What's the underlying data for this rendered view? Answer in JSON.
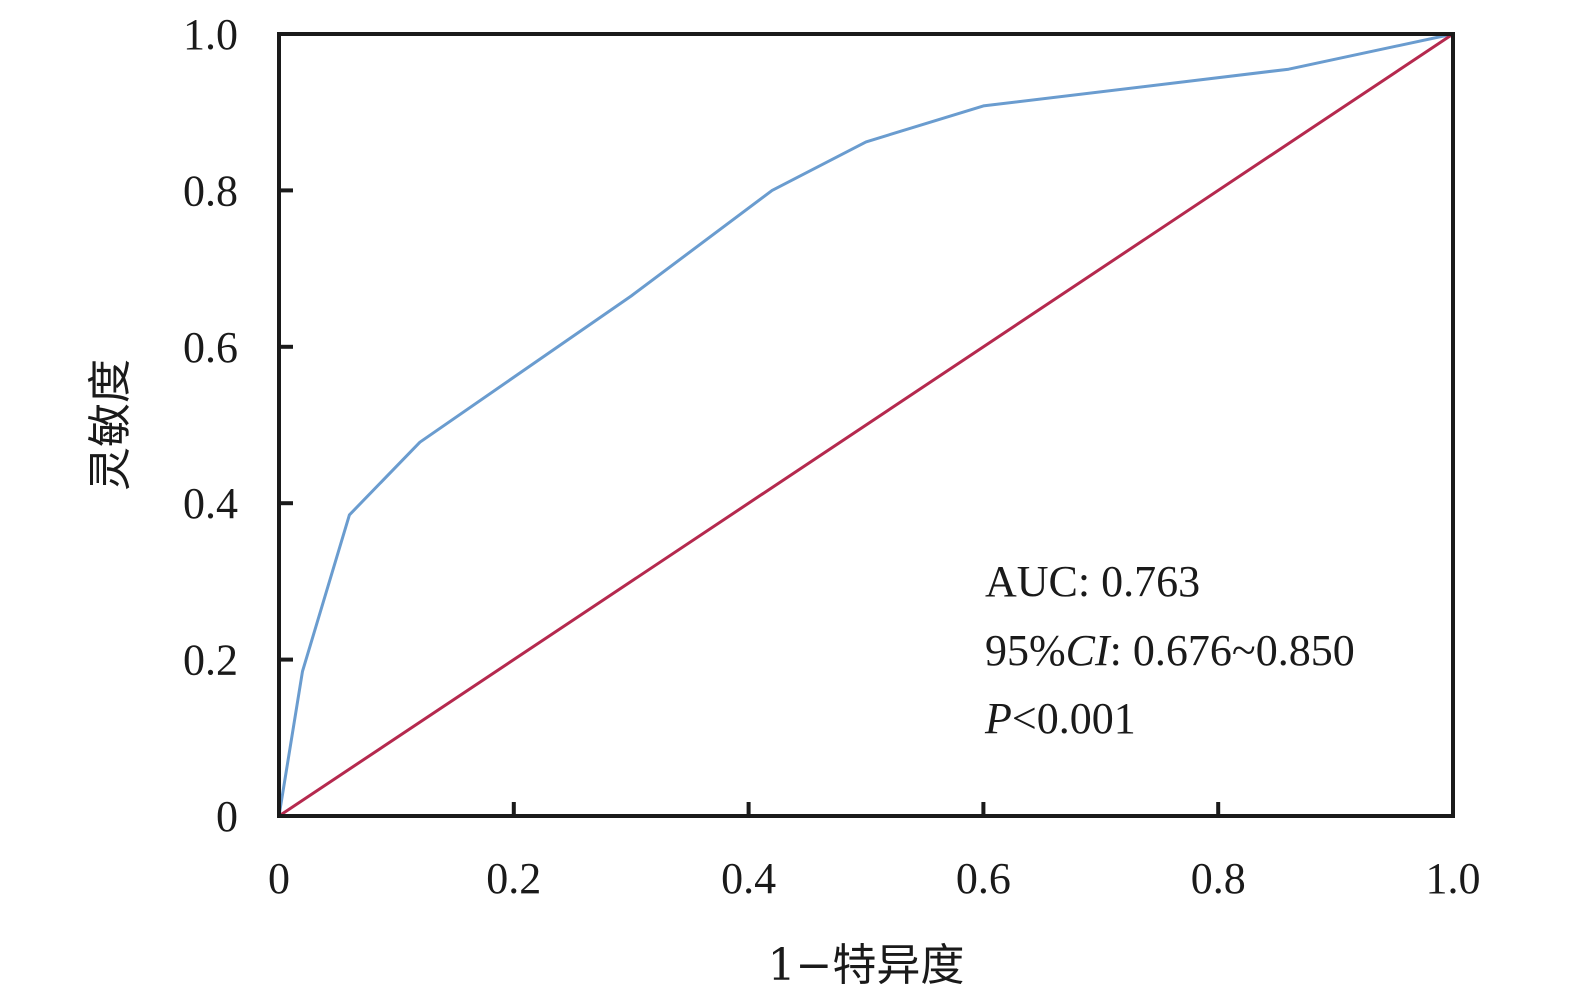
{
  "chart_data": {
    "type": "line",
    "title": "",
    "xlabel": "1−特异度",
    "ylabel": "灵敏度",
    "xlim": [
      0,
      1.0
    ],
    "ylim": [
      0,
      1.0
    ],
    "x_ticks": [
      "0",
      "0.2",
      "0.4",
      "0.6",
      "0.8",
      "1.0"
    ],
    "y_ticks": [
      "0",
      "0.2",
      "0.4",
      "0.6",
      "0.8",
      "1.0"
    ],
    "grid": false,
    "series": [
      {
        "color": "#6a9ccf",
        "x": [
          0,
          0.02,
          0.06,
          0.12,
          0.3,
          0.42,
          0.5,
          0.6,
          0.86,
          1.0
        ],
        "y": [
          0,
          0.185,
          0.385,
          0.478,
          0.665,
          0.8,
          0.862,
          0.908,
          0.955,
          1.0
        ]
      },
      {
        "color": "#b5294e",
        "x": [
          0,
          1.0
        ],
        "y": [
          0,
          1.0
        ]
      }
    ],
    "annotations": {
      "auc": {
        "label": "AUC",
        "sep": ": ",
        "value": "0.763"
      },
      "ci": {
        "prefix": "95%",
        "italic": "CI",
        "sep": ": ",
        "value": "0.676~0.850"
      },
      "p": {
        "italic": "P",
        "value": "<0.001"
      }
    }
  }
}
